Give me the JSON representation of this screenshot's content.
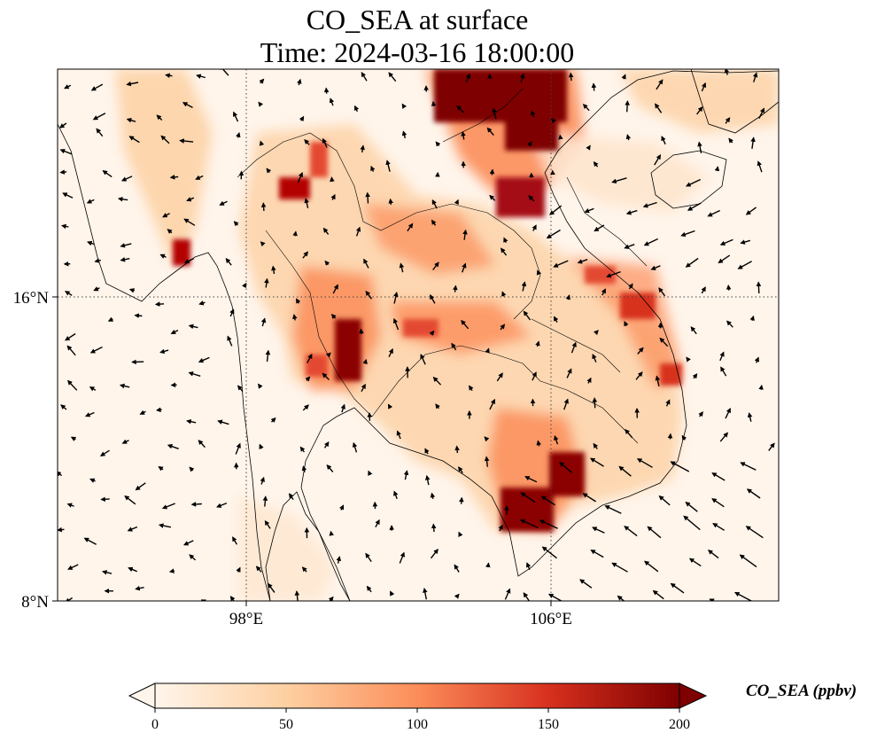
{
  "title": {
    "line1": "CO_SEA at surface",
    "line2": "Time: 2024-03-16 18:00:00"
  },
  "map": {
    "lon_ticks": [
      "98°E",
      "106°E"
    ],
    "lat_ticks": [
      "16°N",
      "8°N"
    ],
    "extent": {
      "lon": [
        93,
        112
      ],
      "lat": [
        8,
        22
      ]
    },
    "gridlines": "dotted"
  },
  "colorbar": {
    "label": "CO_SEA (ppbv)",
    "ticks": [
      "0",
      "50",
      "100",
      "150",
      "200"
    ],
    "range": [
      0,
      200
    ],
    "cmap_stops": [
      "#fff5eb",
      "#fdd0a2",
      "#fd8d3c",
      "#d94801",
      "#7f2704"
    ],
    "extend": "both"
  },
  "colors": {
    "ocean_fill": "#fff5eb",
    "high_conc": "#7f0000",
    "coastline": "#000000"
  }
}
